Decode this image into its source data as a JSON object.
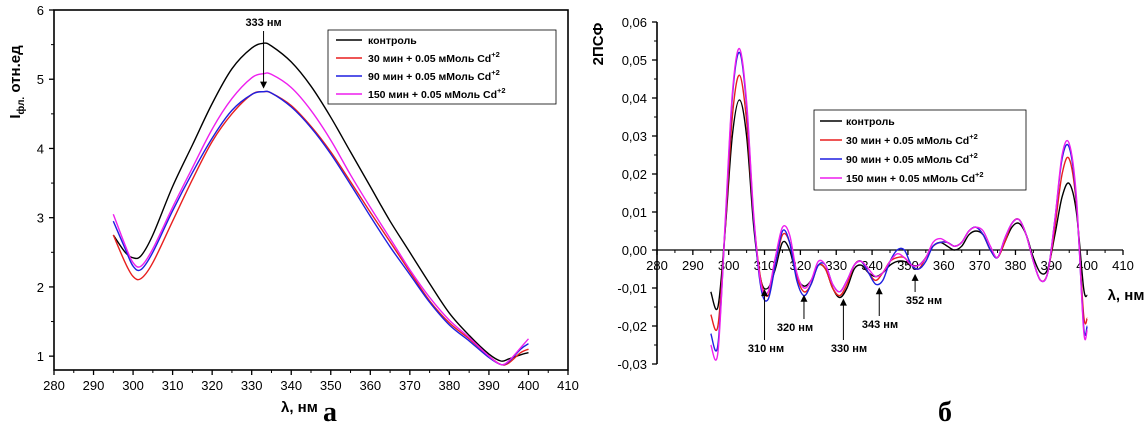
{
  "chart_data": [
    {
      "type": "line",
      "panel_label": "а",
      "ylabel_main": "I",
      "ylabel_sub": "фл.",
      "ylabel_rest": " отн.ед",
      "xlabel": "λ, нм",
      "xlim": [
        280,
        410
      ],
      "ylim": [
        0.8,
        6
      ],
      "xticks": [
        280,
        290,
        300,
        310,
        320,
        330,
        340,
        350,
        360,
        370,
        380,
        390,
        400,
        410
      ],
      "yticks": [
        1,
        2,
        3,
        4,
        5,
        6
      ],
      "annotations": [
        {
          "text": "333 нм",
          "x": 333,
          "y": 4.85
        }
      ],
      "legend_position": "top-right",
      "series": [
        {
          "name": "контроль",
          "color": "#000000",
          "x": [
            295,
            298,
            300,
            302,
            305,
            310,
            315,
            320,
            325,
            330,
            333,
            335,
            340,
            345,
            350,
            355,
            360,
            365,
            370,
            375,
            380,
            385,
            390,
            393,
            395,
            398,
            400
          ],
          "y": [
            2.75,
            2.5,
            2.42,
            2.45,
            2.75,
            3.45,
            4.05,
            4.65,
            5.15,
            5.45,
            5.52,
            5.48,
            5.25,
            4.9,
            4.45,
            3.95,
            3.45,
            2.95,
            2.5,
            2.05,
            1.62,
            1.3,
            1.03,
            0.93,
            0.96,
            1.02,
            1.05
          ]
        },
        {
          "name": "30 мин + 0.05 мМоль Cd",
          "name_sup": "+2",
          "color": "#e81f1f",
          "x": [
            295,
            298,
            300,
            302,
            305,
            310,
            315,
            320,
            325,
            330,
            333,
            335,
            340,
            345,
            350,
            355,
            360,
            365,
            370,
            375,
            380,
            385,
            390,
            393,
            395,
            398,
            400
          ],
          "y": [
            2.75,
            2.35,
            2.15,
            2.12,
            2.35,
            2.95,
            3.55,
            4.1,
            4.5,
            4.78,
            4.82,
            4.8,
            4.62,
            4.32,
            3.95,
            3.52,
            3.08,
            2.65,
            2.22,
            1.8,
            1.48,
            1.25,
            1.0,
            0.88,
            0.9,
            1.05,
            1.1
          ]
        },
        {
          "name": "90 мин + 0.05 мМоль Cd",
          "name_sup": "+2",
          "color": "#1f1fe0",
          "x": [
            295,
            298,
            300,
            302,
            305,
            310,
            315,
            320,
            325,
            330,
            333,
            335,
            340,
            345,
            350,
            355,
            360,
            365,
            370,
            375,
            380,
            385,
            390,
            393,
            395,
            398,
            400
          ],
          "y": [
            2.95,
            2.55,
            2.3,
            2.25,
            2.5,
            3.1,
            3.65,
            4.15,
            4.55,
            4.78,
            4.82,
            4.8,
            4.6,
            4.3,
            3.92,
            3.48,
            3.02,
            2.58,
            2.18,
            1.78,
            1.45,
            1.22,
            0.98,
            0.88,
            0.92,
            1.1,
            1.18
          ]
        },
        {
          "name": "150 мин + 0.05 мМоль Cd",
          "name_sup": "+2",
          "color": "#ee1fee",
          "x": [
            295,
            298,
            300,
            302,
            305,
            310,
            315,
            320,
            325,
            330,
            333,
            335,
            340,
            345,
            350,
            355,
            360,
            365,
            370,
            375,
            380,
            385,
            390,
            393,
            395,
            398,
            400
          ],
          "y": [
            3.05,
            2.6,
            2.35,
            2.3,
            2.55,
            3.15,
            3.72,
            4.28,
            4.72,
            5.02,
            5.08,
            5.07,
            4.88,
            4.55,
            4.12,
            3.62,
            3.15,
            2.7,
            2.25,
            1.85,
            1.52,
            1.27,
            1.0,
            0.88,
            0.93,
            1.12,
            1.25
          ]
        }
      ]
    },
    {
      "type": "line",
      "panel_label": "б",
      "ylabel": "2ПСФ",
      "xlabel": "λ, нм",
      "xlim": [
        280,
        410
      ],
      "ylim": [
        -0.03,
        0.06
      ],
      "xticks": [
        280,
        290,
        300,
        310,
        320,
        330,
        340,
        350,
        360,
        370,
        380,
        390,
        400,
        410
      ],
      "yticks": [
        "-0,03",
        "-0,02",
        "-0,01",
        "0,00",
        "0,01",
        "0,02",
        "0,03",
        "0,04",
        "0,05",
        "0,06"
      ],
      "ytick_values": [
        -0.03,
        -0.02,
        -0.01,
        0,
        0.01,
        0.02,
        0.03,
        0.04,
        0.05,
        0.06
      ],
      "annotations": [
        {
          "text": "310 нм",
          "x": 310,
          "y": -0.0095
        },
        {
          "text": "320 нм",
          "x": 321,
          "y": -0.011
        },
        {
          "text": "330 нм",
          "x": 332,
          "y": -0.012
        },
        {
          "text": "343 нм",
          "x": 342,
          "y": -0.009
        },
        {
          "text": "352 нм",
          "x": 352,
          "y": -0.0055
        }
      ],
      "legend_position": "center",
      "series": [
        {
          "name": "контроль",
          "color": "#000000",
          "x": [
            295,
            297,
            299,
            301,
            303,
            305,
            307,
            309,
            311,
            313,
            315,
            317,
            319,
            321,
            323,
            325,
            327,
            329,
            331,
            333,
            335,
            337,
            339,
            341,
            343,
            345,
            347,
            349,
            351,
            353,
            355,
            357,
            359,
            361,
            363,
            365,
            367,
            369,
            371,
            373,
            375,
            377,
            379,
            381,
            383,
            385,
            387,
            389,
            391,
            393,
            395,
            397,
            399,
            400
          ],
          "y": [
            -0.011,
            -0.015,
            0.005,
            0.03,
            0.0395,
            0.03,
            0.006,
            -0.008,
            -0.01,
            -0.005,
            0.002,
            0.0,
            -0.007,
            -0.0095,
            -0.008,
            -0.004,
            -0.005,
            -0.01,
            -0.0125,
            -0.01,
            -0.005,
            -0.004,
            -0.006,
            -0.007,
            -0.006,
            -0.004,
            -0.003,
            -0.003,
            -0.004,
            -0.004,
            -0.002,
            0.001,
            0.002,
            0.001,
            0.0,
            0.001,
            0.004,
            0.005,
            0.004,
            0.0,
            -0.002,
            0.002,
            0.006,
            0.007,
            0.004,
            -0.002,
            -0.006,
            -0.005,
            0.004,
            0.014,
            0.0175,
            0.01,
            -0.01,
            -0.012
          ]
        },
        {
          "name": "30 мин + 0.05 мМоль Cd",
          "name_sup": "+2",
          "color": "#e81f1f",
          "x": [
            295,
            297,
            299,
            301,
            303,
            305,
            307,
            309,
            311,
            313,
            315,
            317,
            319,
            321,
            323,
            325,
            327,
            329,
            331,
            333,
            335,
            337,
            339,
            341,
            343,
            345,
            347,
            349,
            351,
            353,
            355,
            357,
            359,
            361,
            363,
            365,
            367,
            369,
            371,
            373,
            375,
            377,
            379,
            381,
            383,
            385,
            387,
            389,
            391,
            393,
            395,
            397,
            399,
            400
          ],
          "y": [
            -0.017,
            -0.02,
            0.005,
            0.035,
            0.046,
            0.034,
            0.008,
            -0.008,
            -0.012,
            -0.004,
            0.004,
            0.002,
            -0.007,
            -0.011,
            -0.009,
            -0.004,
            -0.005,
            -0.01,
            -0.012,
            -0.009,
            -0.004,
            -0.003,
            -0.006,
            -0.008,
            -0.006,
            -0.003,
            -0.002,
            -0.002,
            -0.004,
            -0.005,
            -0.002,
            0.001,
            0.002,
            0.002,
            0.001,
            0.002,
            0.005,
            0.006,
            0.004,
            0.0,
            -0.002,
            0.002,
            0.007,
            0.008,
            0.004,
            -0.003,
            -0.008,
            -0.006,
            0.006,
            0.02,
            0.024,
            0.012,
            -0.017,
            -0.018
          ]
        },
        {
          "name": "90 мин + 0.05 мМоль Cd",
          "name_sup": "+2",
          "color": "#1f1fe0",
          "x": [
            295,
            297,
            299,
            301,
            303,
            305,
            307,
            309,
            311,
            313,
            315,
            317,
            319,
            321,
            323,
            325,
            327,
            329,
            331,
            333,
            335,
            337,
            339,
            341,
            343,
            345,
            347,
            349,
            351,
            353,
            355,
            357,
            359,
            361,
            363,
            365,
            367,
            369,
            371,
            373,
            375,
            377,
            379,
            381,
            383,
            385,
            387,
            389,
            391,
            393,
            395,
            397,
            399,
            400
          ],
          "y": [
            -0.022,
            -0.025,
            0.006,
            0.04,
            0.052,
            0.038,
            0.008,
            -0.01,
            -0.013,
            -0.004,
            0.005,
            0.002,
            -0.008,
            -0.012,
            -0.009,
            -0.004,
            -0.004,
            -0.009,
            -0.011,
            -0.008,
            -0.004,
            -0.003,
            -0.006,
            -0.009,
            -0.008,
            -0.003,
            0.0,
            0.0,
            -0.004,
            -0.005,
            -0.003,
            0.001,
            0.002,
            0.002,
            0.001,
            0.002,
            0.005,
            0.006,
            0.004,
            0.0,
            -0.002,
            0.003,
            0.007,
            0.008,
            0.004,
            -0.003,
            -0.008,
            -0.006,
            0.008,
            0.024,
            0.027,
            0.013,
            -0.02,
            -0.02
          ]
        },
        {
          "name": "150 мин + 0.05 мМоль Cd",
          "name_sup": "+2",
          "color": "#ee1fee",
          "x": [
            295,
            297,
            299,
            301,
            303,
            305,
            307,
            309,
            311,
            313,
            315,
            317,
            319,
            321,
            323,
            325,
            327,
            329,
            331,
            333,
            335,
            337,
            339,
            341,
            343,
            345,
            347,
            349,
            351,
            353,
            355,
            357,
            359,
            361,
            363,
            365,
            367,
            369,
            371,
            373,
            375,
            377,
            379,
            381,
            383,
            385,
            387,
            389,
            391,
            393,
            395,
            397,
            399,
            400
          ],
          "y": [
            -0.025,
            -0.027,
            0.007,
            0.041,
            0.053,
            0.039,
            0.009,
            -0.009,
            -0.011,
            -0.002,
            0.006,
            0.004,
            -0.006,
            -0.01,
            -0.008,
            -0.003,
            -0.004,
            -0.009,
            -0.011,
            -0.008,
            -0.004,
            -0.003,
            -0.005,
            -0.007,
            -0.006,
            -0.003,
            -0.001,
            -0.002,
            -0.004,
            -0.004,
            -0.002,
            0.002,
            0.003,
            0.002,
            0.001,
            0.002,
            0.005,
            0.006,
            0.005,
            0.001,
            -0.002,
            0.003,
            0.007,
            0.008,
            0.004,
            -0.003,
            -0.008,
            -0.006,
            0.008,
            0.025,
            0.028,
            0.014,
            -0.021,
            -0.021
          ]
        }
      ]
    }
  ]
}
